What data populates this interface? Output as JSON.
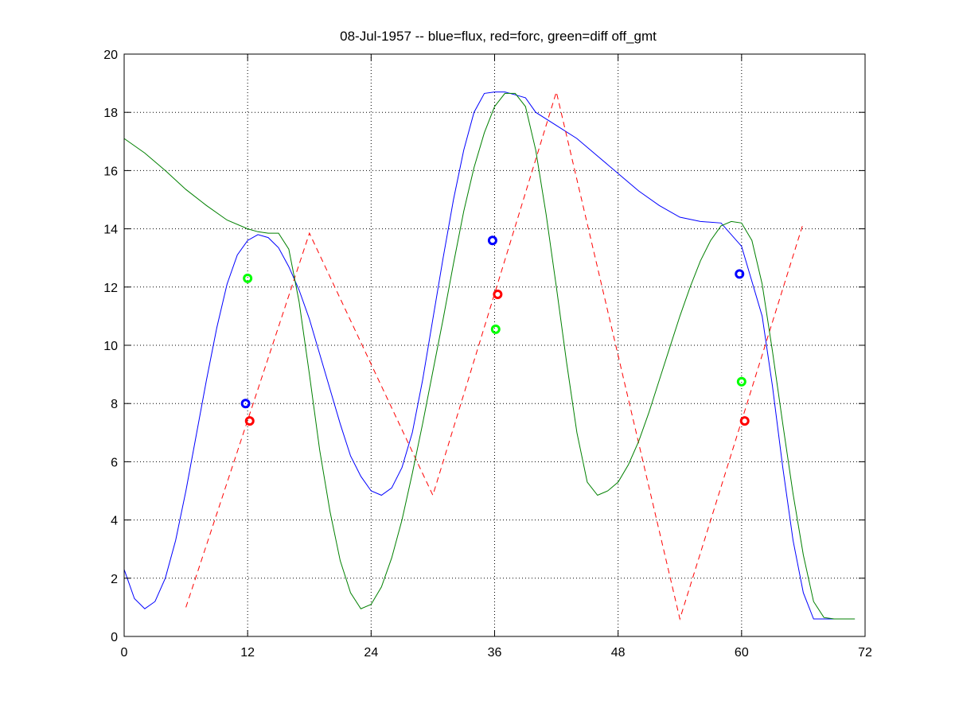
{
  "chart_data": {
    "type": "line",
    "title": "08-Jul-1957 -- blue=flux, red=forc, green=diff off_gmt",
    "xlabel": "",
    "ylabel": "",
    "xlim": [
      0,
      72
    ],
    "ylim": [
      0,
      20
    ],
    "xticks": [
      0,
      12,
      24,
      36,
      48,
      60,
      72
    ],
    "yticks": [
      0,
      2,
      4,
      6,
      8,
      10,
      12,
      14,
      16,
      18,
      20
    ],
    "grid": true,
    "legend": "none",
    "series": [
      {
        "color": "#0000ff",
        "style": "solid",
        "x": [
          0,
          1,
          2,
          3,
          4,
          5,
          6,
          7,
          8,
          9,
          10,
          11,
          12,
          13,
          14,
          15,
          16,
          17,
          18,
          19,
          20,
          21,
          22,
          23,
          24,
          25,
          26,
          27,
          28,
          29,
          30,
          31,
          32,
          33,
          34,
          35,
          36,
          37,
          38,
          39,
          40,
          42,
          44,
          46,
          48,
          50,
          52,
          54,
          56,
          58,
          60,
          62,
          63,
          64,
          65,
          66,
          67,
          68,
          69,
          70,
          71
        ],
        "y": [
          2.3,
          1.3,
          0.95,
          1.2,
          2.0,
          3.3,
          5.0,
          6.9,
          8.8,
          10.6,
          12.1,
          13.1,
          13.6,
          13.8,
          13.7,
          13.35,
          12.7,
          11.9,
          10.9,
          9.7,
          8.5,
          7.3,
          6.2,
          5.5,
          5.0,
          4.85,
          5.1,
          5.8,
          7.0,
          8.8,
          10.9,
          13.0,
          15.0,
          16.7,
          18.0,
          18.65,
          18.7,
          18.7,
          18.6,
          18.5,
          18.0,
          17.55,
          17.1,
          16.5,
          15.9,
          15.3,
          14.8,
          14.4,
          14.25,
          14.2,
          13.4,
          11.0,
          8.6,
          5.8,
          3.3,
          1.5,
          0.6,
          0.6,
          0.6,
          0.6,
          0.6
        ]
      },
      {
        "color": "#ff0000",
        "style": "dashed",
        "x": [
          6,
          18,
          30,
          42,
          54,
          66
        ],
        "y": [
          1.0,
          13.85,
          4.85,
          18.7,
          0.6,
          14.2
        ]
      },
      {
        "color": "#008000",
        "style": "solid",
        "x": [
          0,
          2,
          4,
          6,
          8,
          10,
          12,
          13,
          14,
          15,
          16,
          17,
          18,
          19,
          20,
          21,
          22,
          23,
          24,
          25,
          26,
          27,
          28,
          29,
          30,
          31,
          32,
          33,
          34,
          35,
          36,
          37,
          38,
          39,
          40,
          41,
          42,
          43,
          44,
          45,
          46,
          47,
          48,
          49,
          50,
          51,
          52,
          53,
          54,
          55,
          56,
          57,
          58,
          59,
          60,
          61,
          62,
          63,
          64,
          65,
          66,
          67,
          68,
          69,
          70,
          71
        ],
        "y": [
          17.1,
          16.6,
          16.0,
          15.35,
          14.8,
          14.3,
          14.0,
          13.9,
          13.85,
          13.85,
          13.3,
          11.5,
          9.0,
          6.4,
          4.3,
          2.6,
          1.5,
          0.95,
          1.1,
          1.7,
          2.7,
          4.0,
          5.6,
          7.3,
          9.1,
          10.9,
          12.8,
          14.6,
          16.1,
          17.3,
          18.2,
          18.65,
          18.65,
          18.2,
          16.7,
          14.5,
          12.0,
          9.4,
          7.0,
          5.3,
          4.85,
          5.0,
          5.3,
          5.9,
          6.7,
          7.7,
          8.8,
          9.9,
          11.0,
          12.0,
          12.9,
          13.6,
          14.1,
          14.25,
          14.2,
          13.6,
          12.1,
          9.8,
          7.3,
          4.9,
          2.8,
          1.2,
          0.65,
          0.6,
          0.6,
          0.6
        ]
      }
    ],
    "markers": [
      {
        "color": "#0000ff",
        "x": 11.8,
        "y": 8.0
      },
      {
        "color": "#ff0000",
        "x": 12.2,
        "y": 7.4
      },
      {
        "color": "#00ff00",
        "x": 12.0,
        "y": 12.3
      },
      {
        "color": "#0000ff",
        "x": 35.8,
        "y": 13.6
      },
      {
        "color": "#ff0000",
        "x": 36.3,
        "y": 11.75
      },
      {
        "color": "#00ff00",
        "x": 36.1,
        "y": 10.55
      },
      {
        "color": "#0000ff",
        "x": 59.8,
        "y": 12.45
      },
      {
        "color": "#ff0000",
        "x": 60.3,
        "y": 7.4
      },
      {
        "color": "#00ff00",
        "x": 60.0,
        "y": 8.75
      }
    ]
  }
}
